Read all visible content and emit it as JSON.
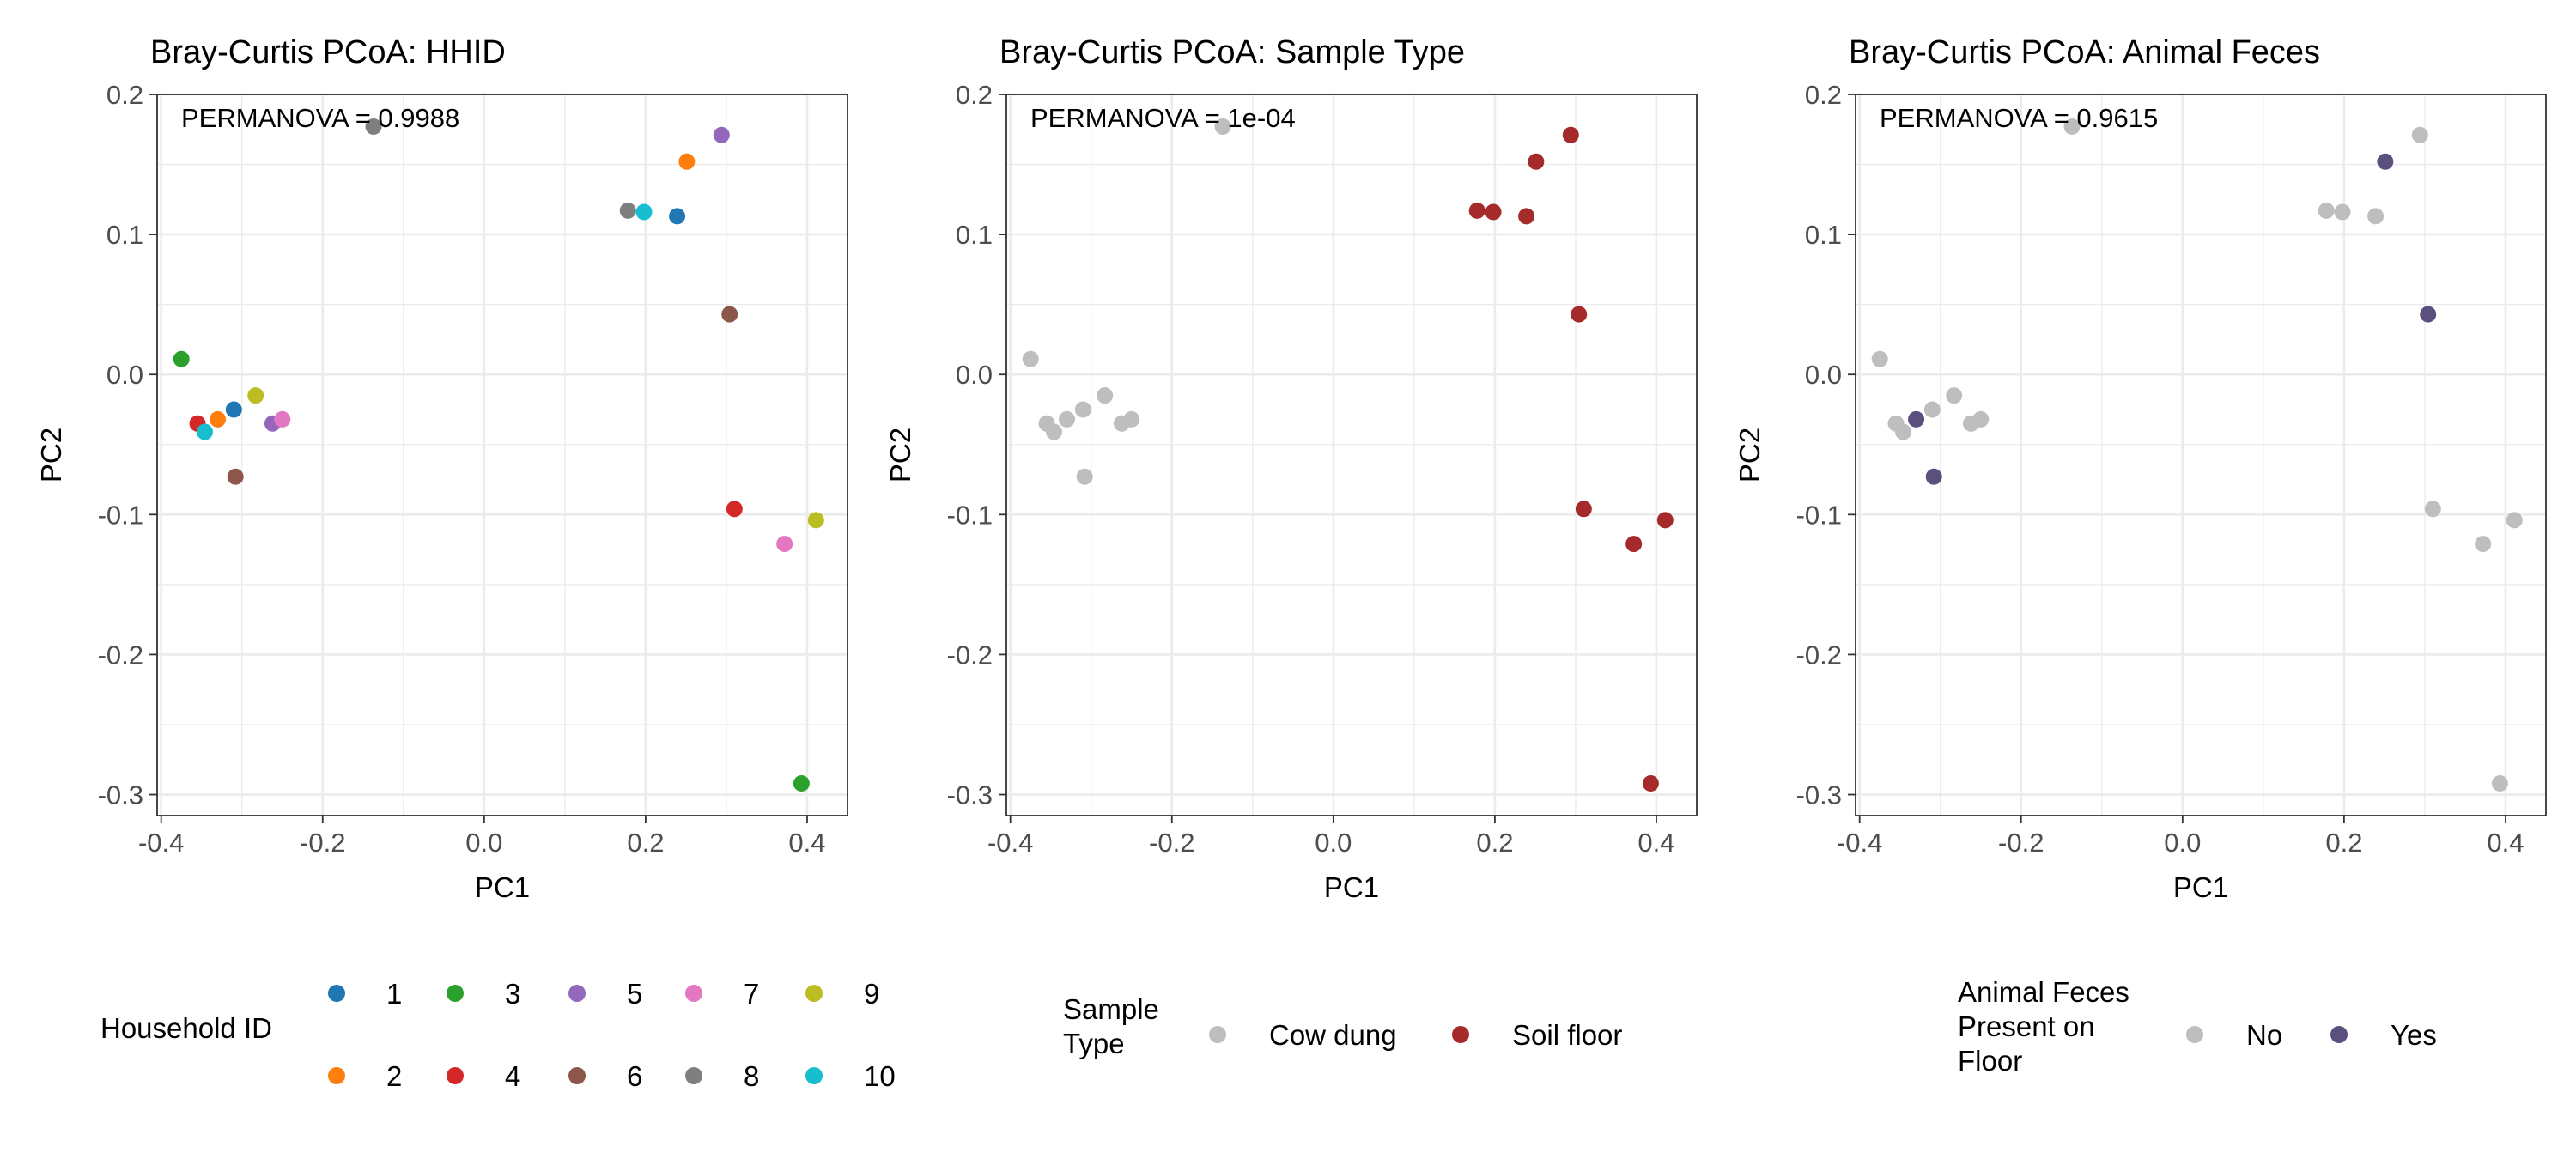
{
  "chart_data": [
    {
      "type": "scatter",
      "title": "Bray-Curtis PCoA: HHID",
      "annotation": "PERMANOVA = 0.9988",
      "xlabel": "PC1",
      "ylabel": "PC2",
      "xlim": [
        -0.405,
        0.45
      ],
      "ylim": [
        -0.315,
        0.2
      ],
      "xticks": [
        -0.4,
        -0.2,
        0.0,
        0.2,
        0.4
      ],
      "xtick_labels": [
        "-0.4",
        "-0.2",
        "0.0",
        "0.2",
        "0.4"
      ],
      "yticks": [
        -0.3,
        -0.2,
        -0.1,
        0.0,
        0.1,
        0.2
      ],
      "ytick_labels": [
        "-0.3",
        "-0.2",
        "-0.1",
        "0.0",
        "0.1",
        "0.2"
      ],
      "grid": true,
      "legend": {
        "title": "Household ID",
        "position": "bottom",
        "entries": [
          {
            "label": "1",
            "color": "#1F77B4"
          },
          {
            "label": "2",
            "color": "#FF7F0E"
          },
          {
            "label": "3",
            "color": "#2CA02C"
          },
          {
            "label": "4",
            "color": "#D62728"
          },
          {
            "label": "5",
            "color": "#9467BD"
          },
          {
            "label": "6",
            "color": "#8C564B"
          },
          {
            "label": "7",
            "color": "#E377C2"
          },
          {
            "label": "8",
            "color": "#7F7F7F"
          },
          {
            "label": "9",
            "color": "#BCBD22"
          },
          {
            "label": "10",
            "color": "#17BECF"
          }
        ]
      },
      "points": [
        {
          "x": -0.31,
          "y": -0.025,
          "group": "1"
        },
        {
          "x": -0.33,
          "y": -0.032,
          "group": "2"
        },
        {
          "x": -0.375,
          "y": 0.011,
          "group": "3"
        },
        {
          "x": -0.355,
          "y": -0.035,
          "group": "4"
        },
        {
          "x": -0.262,
          "y": -0.035,
          "group": "5"
        },
        {
          "x": -0.308,
          "y": -0.073,
          "group": "6"
        },
        {
          "x": -0.25,
          "y": -0.032,
          "group": "7"
        },
        {
          "x": -0.137,
          "y": 0.177,
          "group": "8"
        },
        {
          "x": -0.283,
          "y": -0.015,
          "group": "9"
        },
        {
          "x": -0.346,
          "y": -0.041,
          "group": "10"
        },
        {
          "x": 0.239,
          "y": 0.113,
          "group": "1"
        },
        {
          "x": 0.251,
          "y": 0.152,
          "group": "2"
        },
        {
          "x": 0.393,
          "y": -0.292,
          "group": "3"
        },
        {
          "x": 0.31,
          "y": -0.096,
          "group": "4"
        },
        {
          "x": 0.294,
          "y": 0.171,
          "group": "5"
        },
        {
          "x": 0.304,
          "y": 0.043,
          "group": "6"
        },
        {
          "x": 0.372,
          "y": -0.121,
          "group": "7"
        },
        {
          "x": 0.178,
          "y": 0.117,
          "group": "8"
        },
        {
          "x": 0.411,
          "y": -0.104,
          "group": "9"
        },
        {
          "x": 0.198,
          "y": 0.116,
          "group": "10"
        }
      ]
    },
    {
      "type": "scatter",
      "title": "Bray-Curtis PCoA: Sample Type",
      "annotation": "PERMANOVA = 1e-04",
      "xlabel": "PC1",
      "ylabel": "PC2",
      "xlim": [
        -0.405,
        0.45
      ],
      "ylim": [
        -0.315,
        0.2
      ],
      "xticks": [
        -0.4,
        -0.2,
        0.0,
        0.2,
        0.4
      ],
      "xtick_labels": [
        "-0.4",
        "-0.2",
        "0.0",
        "0.2",
        "0.4"
      ],
      "yticks": [
        -0.3,
        -0.2,
        -0.1,
        0.0,
        0.1,
        0.2
      ],
      "ytick_labels": [
        "-0.3",
        "-0.2",
        "-0.1",
        "0.0",
        "0.1",
        "0.2"
      ],
      "grid": true,
      "legend": {
        "title": "Sample\nType",
        "position": "bottom",
        "entries": [
          {
            "label": "Cow dung",
            "color": "#BEBEBE"
          },
          {
            "label": "Soil floor",
            "color": "#A52A2A"
          }
        ]
      },
      "points": [
        {
          "x": -0.31,
          "y": -0.025,
          "group": "Cow dung"
        },
        {
          "x": -0.33,
          "y": -0.032,
          "group": "Cow dung"
        },
        {
          "x": -0.375,
          "y": 0.011,
          "group": "Cow dung"
        },
        {
          "x": -0.355,
          "y": -0.035,
          "group": "Cow dung"
        },
        {
          "x": -0.262,
          "y": -0.035,
          "group": "Cow dung"
        },
        {
          "x": -0.308,
          "y": -0.073,
          "group": "Cow dung"
        },
        {
          "x": -0.25,
          "y": -0.032,
          "group": "Cow dung"
        },
        {
          "x": -0.137,
          "y": 0.177,
          "group": "Cow dung"
        },
        {
          "x": -0.283,
          "y": -0.015,
          "group": "Cow dung"
        },
        {
          "x": -0.346,
          "y": -0.041,
          "group": "Cow dung"
        },
        {
          "x": 0.239,
          "y": 0.113,
          "group": "Soil floor"
        },
        {
          "x": 0.251,
          "y": 0.152,
          "group": "Soil floor"
        },
        {
          "x": 0.393,
          "y": -0.292,
          "group": "Soil floor"
        },
        {
          "x": 0.31,
          "y": -0.096,
          "group": "Soil floor"
        },
        {
          "x": 0.294,
          "y": 0.171,
          "group": "Soil floor"
        },
        {
          "x": 0.304,
          "y": 0.043,
          "group": "Soil floor"
        },
        {
          "x": 0.372,
          "y": -0.121,
          "group": "Soil floor"
        },
        {
          "x": 0.178,
          "y": 0.117,
          "group": "Soil floor"
        },
        {
          "x": 0.411,
          "y": -0.104,
          "group": "Soil floor"
        },
        {
          "x": 0.198,
          "y": 0.116,
          "group": "Soil floor"
        }
      ]
    },
    {
      "type": "scatter",
      "title": "Bray-Curtis PCoA: Animal Feces",
      "annotation": "PERMANOVA = 0.9615",
      "xlabel": "PC1",
      "ylabel": "PC2",
      "xlim": [
        -0.405,
        0.45
      ],
      "ylim": [
        -0.315,
        0.2
      ],
      "xticks": [
        -0.4,
        -0.2,
        0.0,
        0.2,
        0.4
      ],
      "xtick_labels": [
        "-0.4",
        "-0.2",
        "0.0",
        "0.2",
        "0.4"
      ],
      "yticks": [
        -0.3,
        -0.2,
        -0.1,
        0.0,
        0.1,
        0.2
      ],
      "ytick_labels": [
        "-0.3",
        "-0.2",
        "-0.1",
        "0.0",
        "0.1",
        "0.2"
      ],
      "grid": true,
      "legend": {
        "title": "Animal Feces\nPresent on\nFloor",
        "position": "bottom",
        "entries": [
          {
            "label": "No",
            "color": "#BEBEBE"
          },
          {
            "label": "Yes",
            "color": "#5B4F7D"
          }
        ]
      },
      "points": [
        {
          "x": -0.31,
          "y": -0.025,
          "group": "No"
        },
        {
          "x": -0.33,
          "y": -0.032,
          "group": "Yes"
        },
        {
          "x": -0.375,
          "y": 0.011,
          "group": "No"
        },
        {
          "x": -0.355,
          "y": -0.035,
          "group": "No"
        },
        {
          "x": -0.262,
          "y": -0.035,
          "group": "No"
        },
        {
          "x": -0.308,
          "y": -0.073,
          "group": "Yes"
        },
        {
          "x": -0.25,
          "y": -0.032,
          "group": "No"
        },
        {
          "x": -0.137,
          "y": 0.177,
          "group": "No"
        },
        {
          "x": -0.283,
          "y": -0.015,
          "group": "No"
        },
        {
          "x": -0.346,
          "y": -0.041,
          "group": "No"
        },
        {
          "x": 0.239,
          "y": 0.113,
          "group": "No"
        },
        {
          "x": 0.251,
          "y": 0.152,
          "group": "Yes"
        },
        {
          "x": 0.393,
          "y": -0.292,
          "group": "No"
        },
        {
          "x": 0.31,
          "y": -0.096,
          "group": "No"
        },
        {
          "x": 0.294,
          "y": 0.171,
          "group": "No"
        },
        {
          "x": 0.304,
          "y": 0.043,
          "group": "Yes"
        },
        {
          "x": 0.372,
          "y": -0.121,
          "group": "No"
        },
        {
          "x": 0.178,
          "y": 0.117,
          "group": "No"
        },
        {
          "x": 0.411,
          "y": -0.104,
          "group": "No"
        },
        {
          "x": 0.198,
          "y": 0.116,
          "group": "No"
        }
      ]
    }
  ]
}
